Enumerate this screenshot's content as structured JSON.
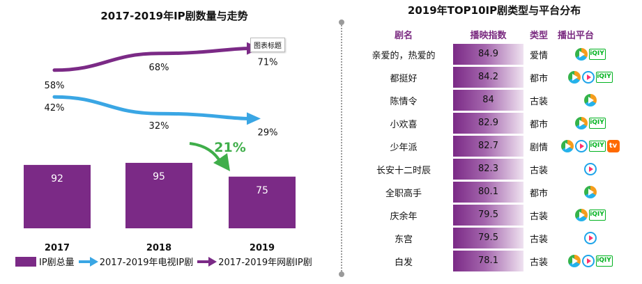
{
  "left_title": "2017-2019年IP剧数量与走势",
  "right_title": "2019年TOP10IP剧类型与平台分布",
  "chart_data": [
    {
      "type": "bar",
      "title": "2017-2019年IP剧数量与走势",
      "categories": [
        "2017",
        "2018",
        "2019"
      ],
      "series": [
        {
          "name": "IP剧总量",
          "values": [
            92,
            95,
            75
          ],
          "color": "#7b2a86"
        },
        {
          "name": "2017-2019年电视IP剧",
          "values": [
            42,
            32,
            29
          ],
          "unit": "%",
          "color": "#3aa6e4",
          "style": "arrow-line"
        },
        {
          "name": "2017-2019年网剧IP剧",
          "values": [
            58,
            68,
            71
          ],
          "unit": "%",
          "color": "#7b2a86",
          "style": "arrow-line"
        }
      ],
      "annotation": "21%",
      "tooltip": "图表标题"
    },
    {
      "type": "table",
      "title": "2019年TOP10IP剧类型与平台分布",
      "columns": [
        "剧名",
        "播映指数",
        "类型",
        "播出平台"
      ],
      "rows": [
        {
          "name": "亲爱的，热爱的",
          "score": "84.9",
          "genre": "爱情",
          "platforms": [
            "tencent",
            "iqiyi"
          ]
        },
        {
          "name": "都挺好",
          "score": "84.2",
          "genre": "都市",
          "platforms": [
            "tencent",
            "youku",
            "iqiyi"
          ]
        },
        {
          "name": "陈情令",
          "score": "84",
          "genre": "古装",
          "platforms": [
            "tencent"
          ]
        },
        {
          "name": "小欢喜",
          "score": "82.9",
          "genre": "都市",
          "platforms": [
            "tencent",
            "iqiyi"
          ]
        },
        {
          "name": "少年派",
          "score": "82.7",
          "genre": "剧情",
          "platforms": [
            "tencent",
            "youku",
            "iqiyi",
            "mgtv"
          ]
        },
        {
          "name": "长安十二时辰",
          "score": "82.3",
          "genre": "古装",
          "platforms": [
            "youku"
          ]
        },
        {
          "name": "全职高手",
          "score": "80.1",
          "genre": "都市",
          "platforms": [
            "tencent"
          ]
        },
        {
          "name": "庆余年",
          "score": "79.5",
          "genre": "古装",
          "platforms": [
            "tencent",
            "iqiyi"
          ]
        },
        {
          "name": "东宫",
          "score": "79.5",
          "genre": "古装",
          "platforms": [
            "youku"
          ]
        },
        {
          "name": "白发",
          "score": "78.1",
          "genre": "古装",
          "platforms": [
            "tencent",
            "youku",
            "iqiyi"
          ]
        }
      ]
    }
  ],
  "platform_icons": {
    "tencent": "tencent-video-icon",
    "youku": "youku-icon",
    "iqiyi": "iqiyi-icon",
    "mgtv": "mgtv-icon"
  },
  "iqiyi_text": "iQIY",
  "mgtv_text": "tv"
}
